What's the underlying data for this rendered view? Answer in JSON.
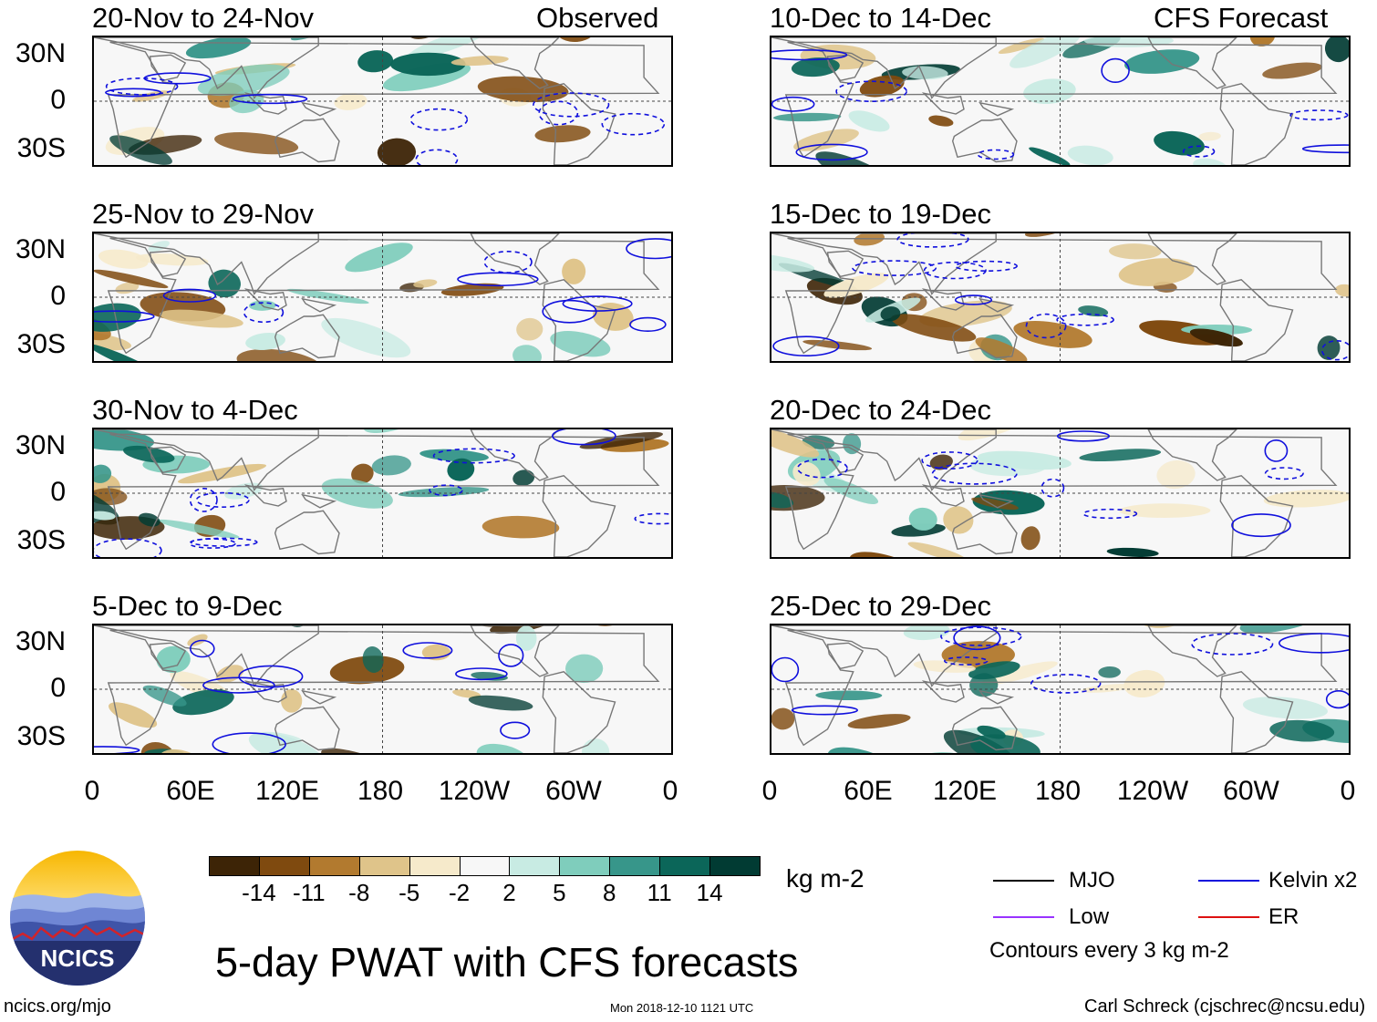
{
  "columns": {
    "left_label": "Observed",
    "right_label": "CFS Forecast"
  },
  "panels": {
    "left": [
      {
        "title": "20-Nov to 24-Nov"
      },
      {
        "title": "25-Nov to 29-Nov"
      },
      {
        "title": "30-Nov to 4-Dec"
      },
      {
        "title": "5-Dec to 9-Dec"
      }
    ],
    "right": [
      {
        "title": "10-Dec to 14-Dec"
      },
      {
        "title": "15-Dec to 19-Dec"
      },
      {
        "title": "20-Dec to 24-Dec"
      },
      {
        "title": "25-Dec to 29-Dec"
      }
    ]
  },
  "axes": {
    "lat_ticks": [
      "30N",
      "0",
      "30S"
    ],
    "lon_ticks": [
      "0",
      "60E",
      "120E",
      "180",
      "120W",
      "60W",
      "0"
    ]
  },
  "colorbar": {
    "units": "kg m-2",
    "tick_labels": [
      "-14",
      "-11",
      "-8",
      "-5",
      "-2",
      "2",
      "5",
      "8",
      "11",
      "14"
    ],
    "colors": [
      "#3d2406",
      "#7f4a0f",
      "#b27a2f",
      "#dfc48a",
      "#f6eacb",
      "#f7f7f7",
      "#c8ebe3",
      "#7fcdbc",
      "#37968a",
      "#0b6659",
      "#013b33"
    ]
  },
  "legend": {
    "items": [
      {
        "label": "MJO",
        "color": "#000000"
      },
      {
        "label": "Kelvin x2",
        "color": "#1010dd"
      },
      {
        "label": "Low",
        "color": "#9933ff"
      },
      {
        "label": "ER",
        "color": "#dd1111"
      }
    ],
    "note": "Contours every 3 kg m-2"
  },
  "title": "5-day PWAT with CFS forecasts",
  "logo": {
    "text": "NCICS"
  },
  "footer": {
    "url": "ncics.org/mjo",
    "timestamp": "Mon 2018-12-10 1121 UTC",
    "credit": "Carl Schreck (cjschrec@ncsu.edu)"
  }
}
